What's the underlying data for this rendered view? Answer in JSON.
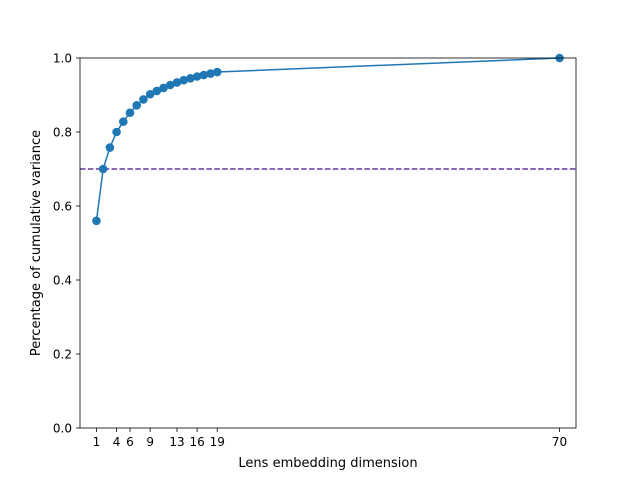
{
  "chart_data": {
    "type": "line",
    "title": "",
    "xlabel": "Lens embedding dimension",
    "ylabel": "Percentage of cumulative variance",
    "xlim": [
      -1.45,
      72.45
    ],
    "ylim": [
      0.0,
      1.0
    ],
    "x_ticks": [
      1,
      4,
      6,
      9,
      13,
      16,
      19,
      70
    ],
    "y_ticks": [
      0.0,
      0.2,
      0.4,
      0.6,
      0.8,
      1.0
    ],
    "y_tick_labels": [
      "0.0",
      "0.2",
      "0.4",
      "0.6",
      "0.8",
      "1.0"
    ],
    "grid": false,
    "series": [
      {
        "color": "#1f77b4",
        "marker": "circle",
        "x": [
          1,
          2,
          3,
          4,
          5,
          6,
          7,
          8,
          9,
          10,
          11,
          12,
          13,
          14,
          15,
          16,
          17,
          18,
          19,
          70
        ],
        "y": [
          0.56,
          0.7,
          0.758,
          0.8,
          0.828,
          0.852,
          0.872,
          0.888,
          0.902,
          0.911,
          0.919,
          0.927,
          0.934,
          0.94,
          0.945,
          0.95,
          0.954,
          0.958,
          0.962,
          1.0
        ]
      }
    ],
    "reference_lines": [
      {
        "orientation": "horizontal",
        "y": 0.7,
        "color": "#663399",
        "style": "dashed"
      }
    ]
  }
}
